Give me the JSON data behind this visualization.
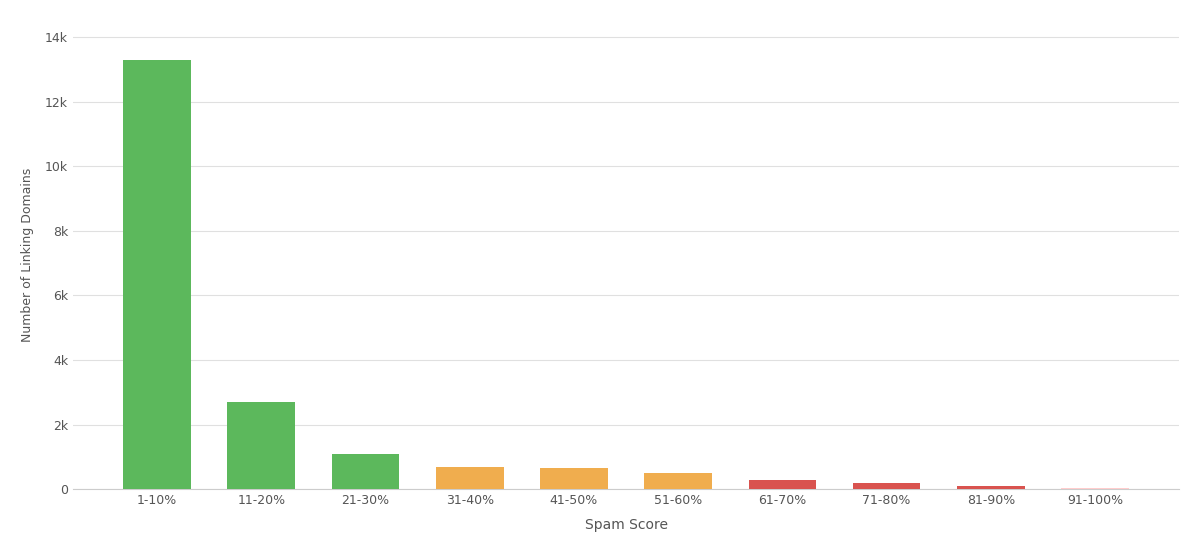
{
  "categories": [
    "1-10%",
    "11-20%",
    "21-30%",
    "31-40%",
    "41-50%",
    "51-60%",
    "61-70%",
    "71-80%",
    "81-90%",
    "91-100%"
  ],
  "values": [
    13300,
    2700,
    1100,
    700,
    650,
    500,
    270,
    200,
    90,
    50
  ],
  "bar_colors": [
    "#5cb85c",
    "#5cb85c",
    "#5cb85c",
    "#f0ad4e",
    "#f0ad4e",
    "#f0ad4e",
    "#d9534f",
    "#d9534f",
    "#d9534f",
    "#ffcccc"
  ],
  "ylabel": "Number of Linking Domains",
  "xlabel": "Spam Score",
  "yticks": [
    0,
    2000,
    4000,
    6000,
    8000,
    10000,
    12000,
    14000
  ],
  "ytick_labels": [
    "0",
    "2k",
    "4k",
    "6k",
    "8k",
    "10k",
    "12k",
    "14k"
  ],
  "ylim": [
    0,
    14500
  ],
  "bg_color": "#ffffff",
  "grid_color": "#e0e0e0",
  "bar_width": 0.65,
  "title": "",
  "fig_width": 12.0,
  "fig_height": 5.53
}
